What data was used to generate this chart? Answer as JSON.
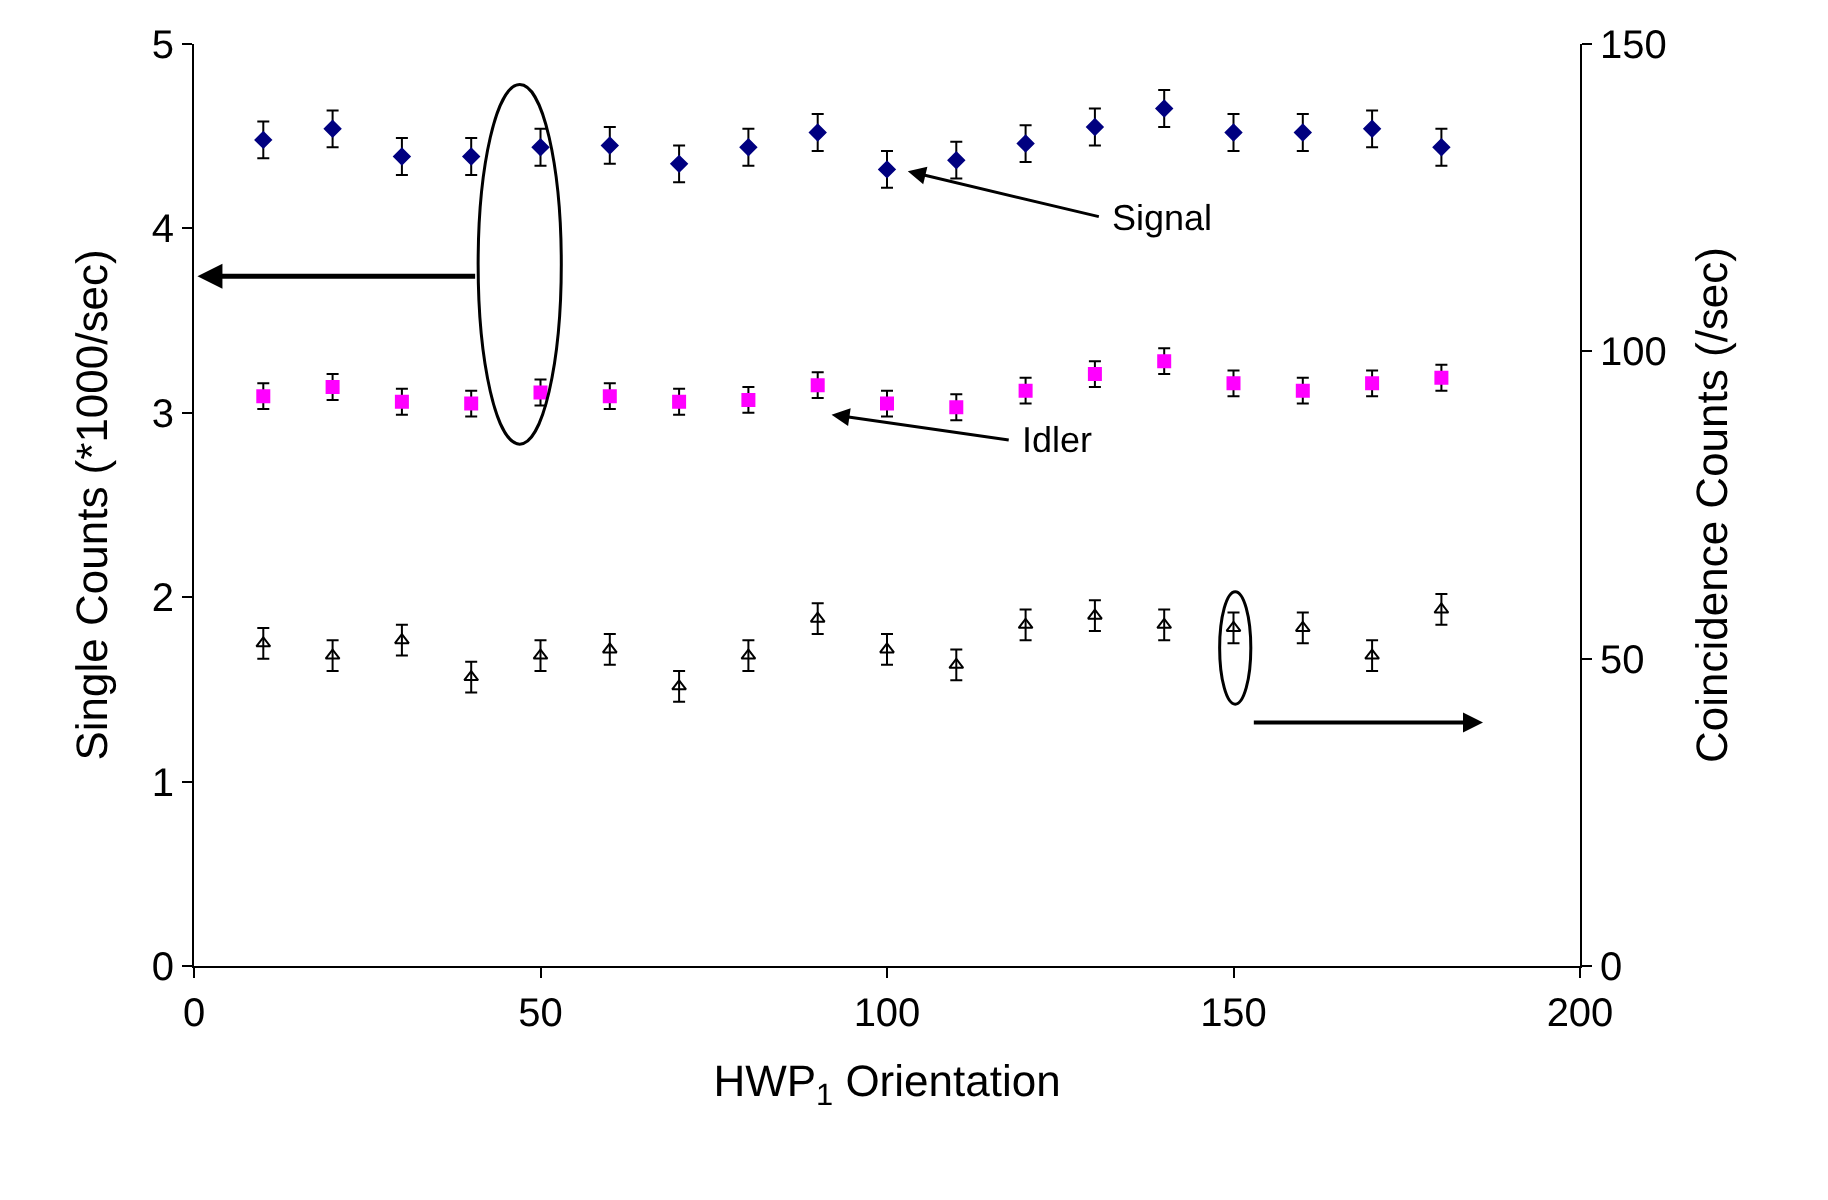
{
  "chart_data": {
    "type": "scatter",
    "xlabel": "HWP$_{1}$ Orientation",
    "ylabel": "Single Counts (*1000/sec)",
    "y2label": "Coincidence Counts (/sec)",
    "x": [
      10,
      20,
      30,
      40,
      50,
      60,
      70,
      80,
      90,
      100,
      110,
      120,
      130,
      140,
      150,
      160,
      170,
      180
    ],
    "xlim": [
      0,
      200
    ],
    "xticks": [
      0,
      50,
      100,
      150,
      200
    ],
    "ylim": [
      0,
      5
    ],
    "yticks": [
      0,
      1,
      2,
      3,
      4,
      5
    ],
    "y2lim": [
      0,
      150
    ],
    "y2ticks": [
      0,
      50,
      100,
      150
    ],
    "legend": false,
    "series": [
      {
        "color": "#000080",
        "marker": "diamond",
        "values": [
          4.48,
          4.54,
          4.39,
          4.39,
          4.44,
          4.45,
          4.35,
          4.44,
          4.52,
          4.32,
          4.37,
          4.46,
          4.55,
          4.65,
          4.52,
          4.52,
          4.54,
          4.44
        ],
        "errors": [
          0.1,
          0.1,
          0.1,
          0.1,
          0.1,
          0.1,
          0.1,
          0.1,
          0.1,
          0.1,
          0.1,
          0.1,
          0.1,
          0.1,
          0.1,
          0.1,
          0.1,
          0.1
        ]
      },
      {
        "color": "#ff00ff",
        "marker": "square",
        "values": [
          3.09,
          3.14,
          3.06,
          3.05,
          3.11,
          3.09,
          3.06,
          3.07,
          3.15,
          3.05,
          3.03,
          3.12,
          3.21,
          3.28,
          3.16,
          3.12,
          3.16,
          3.19
        ],
        "errors": [
          0.07,
          0.07,
          0.07,
          0.07,
          0.07,
          0.07,
          0.07,
          0.07,
          0.07,
          0.07,
          0.07,
          0.07,
          0.07,
          0.07,
          0.07,
          0.07,
          0.07,
          0.07
        ]
      },
      {
        "color": "#000000",
        "marker": "triangle",
        "axis": "y2",
        "values": [
          52.5,
          50.5,
          53,
          47,
          50.5,
          51.5,
          45.5,
          50.5,
          56.5,
          51.5,
          49,
          55.5,
          57,
          55.5,
          55,
          55,
          50.5,
          58
        ],
        "errors": [
          2.5,
          2.5,
          2.5,
          2.5,
          2.5,
          2.5,
          2.5,
          2.5,
          2.5,
          2.5,
          2.5,
          2.5,
          2.5,
          2.5,
          2.5,
          2.5,
          2.5,
          2.5
        ]
      }
    ],
    "annotations": [
      "Signal",
      "Idler"
    ]
  }
}
